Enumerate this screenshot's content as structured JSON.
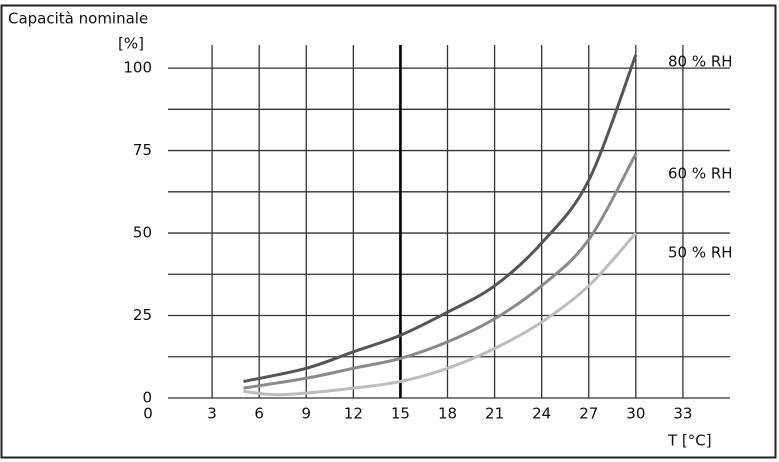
{
  "chart_data": {
    "type": "line",
    "title": "Capacità nominale",
    "y_label": "[%]",
    "x_label": "T [°C]",
    "series": [
      {
        "name": "80 % RH",
        "color": "#555555",
        "x": [
          5,
          9,
          12,
          15,
          18,
          21,
          24,
          27,
          30
        ],
        "values": [
          5,
          9,
          14,
          19,
          26,
          34,
          47,
          66,
          104
        ]
      },
      {
        "name": "60 % RH",
        "color": "#8a8a8a",
        "x": [
          5,
          9,
          12,
          15,
          18,
          21,
          24,
          27,
          30
        ],
        "values": [
          3,
          6,
          9,
          12,
          17,
          24,
          34,
          48,
          74
        ]
      },
      {
        "name": "50 % RH",
        "color": "#bdbdbd",
        "x": [
          5,
          7,
          9,
          12,
          15,
          18,
          21,
          24,
          27,
          30
        ],
        "values": [
          2,
          1,
          1.5,
          3,
          5,
          9,
          15,
          23,
          34,
          50
        ]
      }
    ],
    "xlim": [
      0,
      36
    ],
    "xticks": [
      0,
      3,
      6,
      9,
      12,
      15,
      18,
      21,
      24,
      27,
      30,
      33
    ],
    "ylim": [
      0,
      107
    ],
    "yticks": [
      0,
      25,
      50,
      75,
      100
    ],
    "y_minor_ticks": [
      12.5,
      37.5,
      62.5,
      87.5
    ],
    "reference_x": 15,
    "grid": true
  }
}
